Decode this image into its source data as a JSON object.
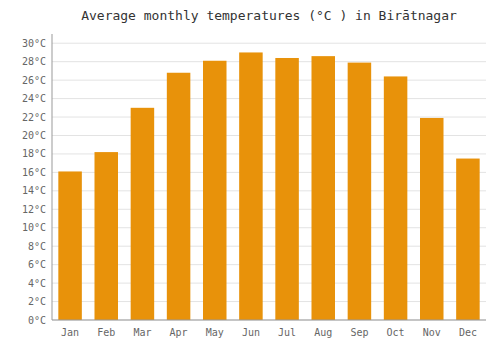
{
  "chart_data": {
    "type": "bar",
    "title": "Average monthly temperatures (°C ) in Birātnagar",
    "categories": [
      "Jan",
      "Feb",
      "Mar",
      "Apr",
      "May",
      "Jun",
      "Jul",
      "Aug",
      "Sep",
      "Oct",
      "Nov",
      "Dec"
    ],
    "values": [
      16.1,
      18.2,
      23.0,
      26.8,
      28.1,
      29.0,
      28.4,
      28.6,
      27.9,
      26.4,
      21.9,
      17.5
    ],
    "color": "#E8920A",
    "ylim": [
      0,
      31
    ],
    "yticks": [
      {
        "value": 0,
        "label": "0°C"
      },
      {
        "value": 2,
        "label": "2°C"
      },
      {
        "value": 4,
        "label": "4°C"
      },
      {
        "value": 6,
        "label": "6°C"
      },
      {
        "value": 8,
        "label": "8°C"
      },
      {
        "value": 10,
        "label": "10°C"
      },
      {
        "value": 12,
        "label": "12°C"
      },
      {
        "value": 14,
        "label": "14°C"
      },
      {
        "value": 16,
        "label": "16°C"
      },
      {
        "value": 18,
        "label": "18°C"
      },
      {
        "value": 20,
        "label": "20°C"
      },
      {
        "value": 22,
        "label": "22°C"
      },
      {
        "value": 24,
        "label": "24°C"
      },
      {
        "value": 26,
        "label": "26°C"
      },
      {
        "value": 28,
        "label": "28°C"
      },
      {
        "value": 30,
        "label": "30°C"
      }
    ],
    "grid": true
  }
}
